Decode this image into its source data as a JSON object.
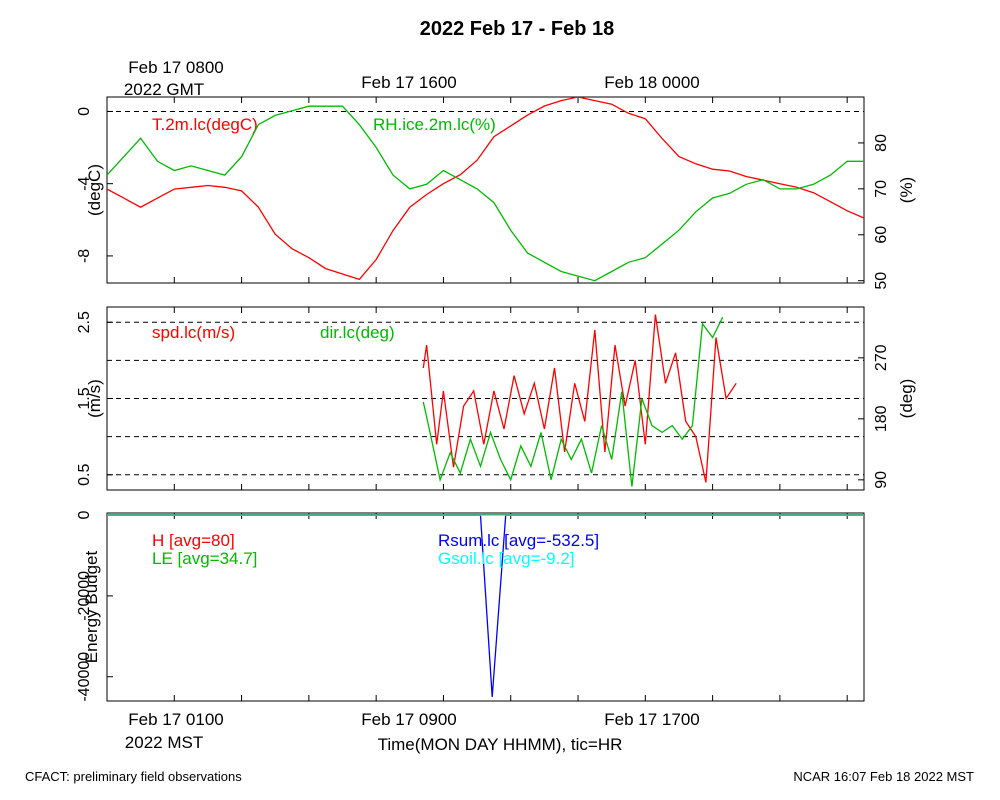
{
  "title": "2022 Feb 17 - Feb 18",
  "top_axis": {
    "first_label_line1": "Feb 17 0800",
    "first_label_line2": "2022 GMT",
    "labels": [
      "Feb 17 1600",
      "Feb 18 0000"
    ]
  },
  "bottom_axis": {
    "first_label_line1": "Feb 17 0100",
    "first_label_line2": "2022 MST",
    "labels": [
      "Feb 17 0900",
      "Feb 17 1700"
    ],
    "xlabel": "Time(MON DAY HHMM), tic=HR"
  },
  "footer": {
    "left": "CFACT: preliminary field observations",
    "right": "NCAR 16:07 Feb 18 2022 MST"
  },
  "colors": {
    "red": "#ff0000",
    "green": "#00bb00",
    "blue": "#0000ff",
    "cyan": "#00ffff",
    "black": "#000000"
  },
  "chart_data": [
    {
      "type": "line",
      "panel": "temperature-humidity",
      "x_unit": "hours since Feb 17 0100 MST",
      "xlim": [
        0,
        22.5
      ],
      "ylabel": "(degC)",
      "ylim": [
        -9.5,
        0.8
      ],
      "yticks": [
        0,
        -4,
        -8
      ],
      "y2label": "(%)",
      "y2lim": [
        49.5,
        90
      ],
      "y2ticks": [
        80,
        70,
        60,
        50
      ],
      "reference_lines": [
        0
      ],
      "series": [
        {
          "name": "T.2m.lc(degC)",
          "axis": "left",
          "color": "#ff0000",
          "x": [
            0,
            0.5,
            1,
            1.5,
            2,
            2.5,
            3,
            3.5,
            4,
            4.5,
            5,
            5.5,
            6,
            6.5,
            7,
            7.5,
            8,
            8.5,
            9,
            9.5,
            10,
            10.5,
            11,
            11.5,
            12,
            12.5,
            13,
            13.5,
            14,
            14.5,
            15,
            15.5,
            16,
            16.5,
            17,
            17.5,
            18,
            18.5,
            19,
            19.5,
            20,
            20.5,
            21,
            21.5,
            22,
            22.5
          ],
          "values": [
            -4.3,
            -4.8,
            -5.3,
            -4.8,
            -4.3,
            -4.2,
            -4.1,
            -4.2,
            -4.4,
            -5.3,
            -6.8,
            -7.6,
            -8.1,
            -8.7,
            -9.0,
            -9.3,
            -8.2,
            -6.6,
            -5.3,
            -4.6,
            -4.0,
            -3.5,
            -2.7,
            -1.4,
            -0.8,
            -0.2,
            0.3,
            0.6,
            0.8,
            0.6,
            0.4,
            -0.1,
            -0.4,
            -1.5,
            -2.5,
            -2.9,
            -3.2,
            -3.3,
            -3.6,
            -3.8,
            -4.0,
            -4.2,
            -4.5,
            -5.0,
            -5.5,
            -5.9
          ]
        },
        {
          "name": "RH.ice.2m.lc(%)",
          "axis": "right",
          "color": "#00bb00",
          "x": [
            0,
            0.5,
            1,
            1.5,
            2,
            2.5,
            3,
            3.5,
            4,
            4.5,
            5,
            5.5,
            6,
            6.5,
            7,
            7.5,
            8,
            8.5,
            9,
            9.5,
            10,
            10.5,
            11,
            11.5,
            12,
            12.5,
            13,
            13.5,
            14,
            14.5,
            15,
            15.5,
            16,
            16.5,
            17,
            17.5,
            18,
            18.5,
            19,
            19.5,
            20,
            20.5,
            21,
            21.5,
            22,
            22.5
          ],
          "values": [
            73,
            77,
            81,
            76,
            74,
            75,
            74,
            73,
            77,
            84,
            86,
            87,
            88,
            88,
            88,
            84,
            79,
            73,
            70,
            71,
            74,
            72,
            70,
            67,
            61,
            56,
            54,
            52,
            51,
            50,
            52,
            54,
            55,
            58,
            61,
            65,
            68,
            69,
            71,
            72,
            70,
            70,
            71,
            73,
            76,
            76
          ]
        }
      ]
    },
    {
      "type": "line",
      "panel": "wind",
      "x_unit": "hours since Feb 17 0100 MST",
      "xlim": [
        0,
        22.5
      ],
      "ylabel": "(m/s)",
      "ylim": [
        0.3,
        2.7
      ],
      "yticks": [
        2.5,
        1.5,
        0.5
      ],
      "y2label": "(deg)",
      "y2lim": [
        75,
        345
      ],
      "y2ticks": [
        270,
        180,
        90
      ],
      "reference_lines": [
        0.5,
        1,
        1.5,
        2,
        2.5
      ],
      "series": [
        {
          "name": "spd.lc(m/s)",
          "axis": "left",
          "color": "#ff0000",
          "x": [
            9.4,
            9.5,
            9.8,
            10,
            10.3,
            10.6,
            10.9,
            11.2,
            11.5,
            11.8,
            12.1,
            12.4,
            12.7,
            13,
            13.3,
            13.6,
            13.9,
            14.2,
            14.5,
            14.8,
            15.1,
            15.4,
            15.7,
            16,
            16.3,
            16.6,
            16.9,
            17.2,
            17.5,
            17.8,
            18.1,
            18.4,
            18.7
          ],
          "values": [
            1.9,
            2.2,
            0.9,
            1.6,
            0.6,
            1.4,
            1.6,
            0.9,
            1.6,
            1.1,
            1.8,
            1.3,
            1.7,
            1.1,
            1.9,
            0.8,
            1.7,
            1.2,
            2.4,
            0.8,
            2.2,
            1.4,
            2.0,
            0.9,
            2.6,
            1.7,
            2.1,
            1.2,
            1.0,
            0.4,
            2.3,
            1.5,
            1.7
          ]
        },
        {
          "name": "dir.lc(deg)",
          "axis": "right",
          "color": "#00bb00",
          "x": [
            9.4,
            9.6,
            9.9,
            10.2,
            10.5,
            10.8,
            11.1,
            11.4,
            11.7,
            12,
            12.3,
            12.6,
            12.9,
            13.2,
            13.5,
            13.8,
            14.1,
            14.4,
            14.7,
            15,
            15.3,
            15.6,
            15.9,
            16.2,
            16.5,
            16.8,
            17.1,
            17.4,
            17.7,
            18,
            18.3
          ],
          "values": [
            205,
            160,
            90,
            130,
            100,
            150,
            110,
            160,
            120,
            90,
            140,
            110,
            160,
            90,
            150,
            120,
            150,
            100,
            170,
            120,
            220,
            80,
            210,
            170,
            160,
            170,
            150,
            170,
            320,
            300,
            330
          ]
        }
      ]
    },
    {
      "type": "line",
      "panel": "energy-budget",
      "x_unit": "hours since Feb 17 0100 MST",
      "xlim": [
        0,
        22.5
      ],
      "ylabel": "Energy Budget",
      "ylim": [
        -46000,
        500
      ],
      "yticks": [
        0,
        -20000,
        -40000
      ],
      "reference_lines": [
        0
      ],
      "series": [
        {
          "name": "H [avg=80]",
          "color": "#ff0000",
          "x": [
            0,
            22.5
          ],
          "values": [
            80,
            80
          ]
        },
        {
          "name": "LE [avg=34.7]",
          "color": "#00bb00",
          "x": [
            0,
            22.5
          ],
          "values": [
            35,
            35
          ]
        },
        {
          "name": "Rsum.lc [avg=-532.5]",
          "color": "#0000ff",
          "x": [
            0,
            11.1,
            11.45,
            11.85,
            22.5
          ],
          "values": [
            -100,
            -100,
            -45000,
            -100,
            -100
          ]
        },
        {
          "name": "Gsoil.lc [avg=-9.2]",
          "color": "#00ffff",
          "x": [
            0,
            22.5
          ],
          "values": [
            -9,
            -9
          ]
        }
      ]
    }
  ]
}
